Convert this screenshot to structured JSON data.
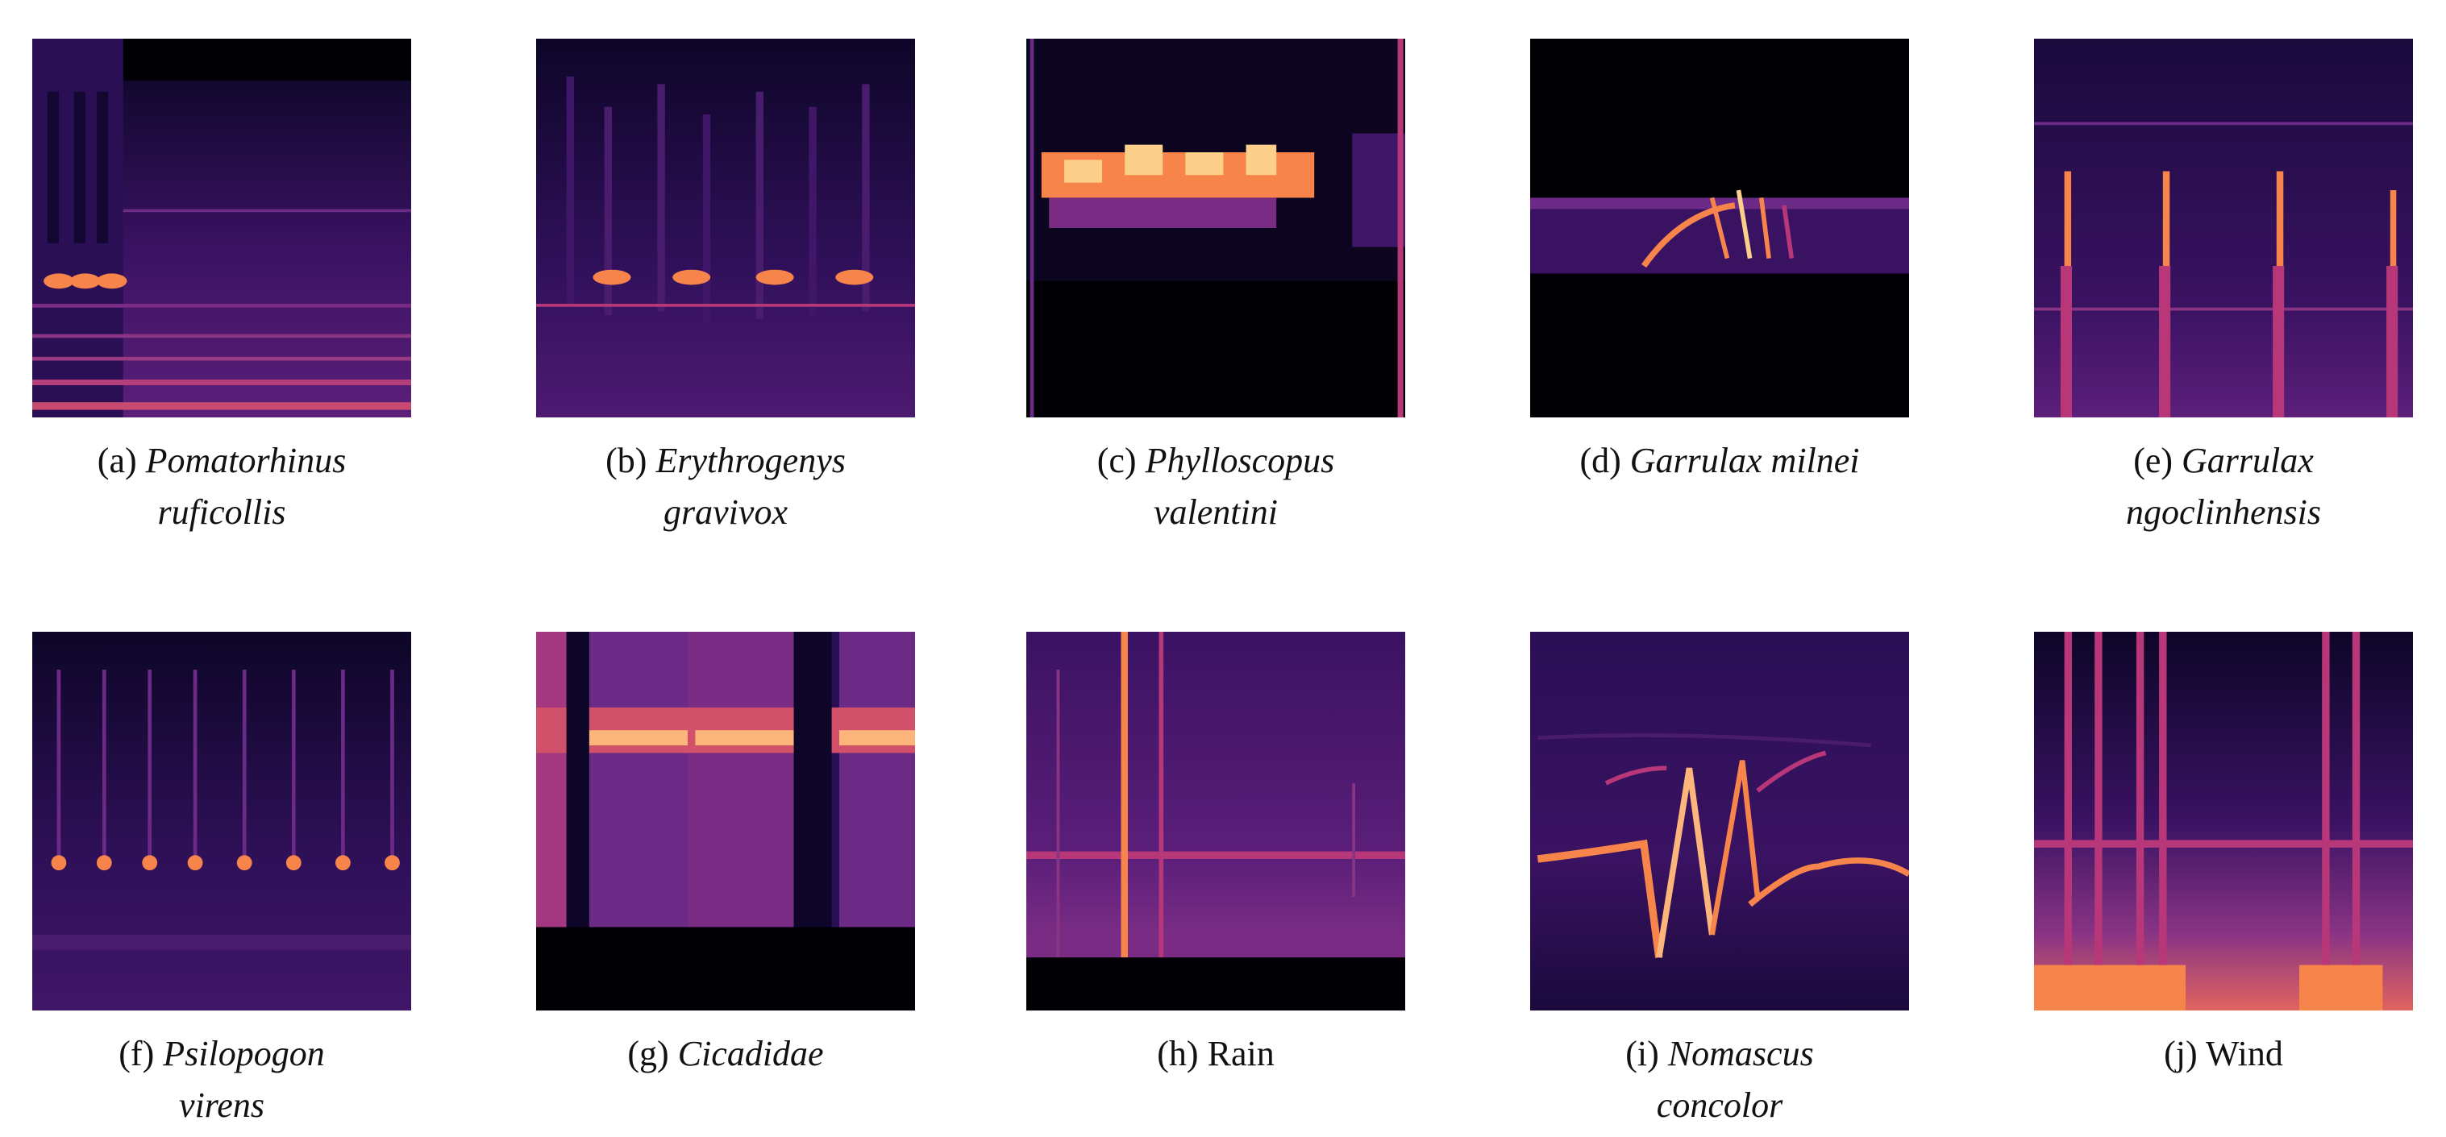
{
  "panels": [
    {
      "label": "(a)",
      "name_line1": "Pomatorhinus",
      "name_line2": "ruficollis",
      "italic": true
    },
    {
      "label": "(b)",
      "name_line1": "Erythrogenys",
      "name_line2": "gravivox",
      "italic": true
    },
    {
      "label": "(c)",
      "name_line1": "Phylloscopus",
      "name_line2": "valentini",
      "italic": true
    },
    {
      "label": "(d)",
      "name_line1": "Garrulax milnei",
      "name_line2": "",
      "italic": true
    },
    {
      "label": "(e)",
      "name_line1": "Garrulax",
      "name_line2": "ngoclinhensis",
      "italic": true
    },
    {
      "label": "(f)",
      "name_line1": "Psilopogon",
      "name_line2": "virens",
      "italic": true
    },
    {
      "label": "(g)",
      "name_line1": "Cicadidae",
      "name_line2": "",
      "italic": true
    },
    {
      "label": "(h)",
      "name_line1": "Rain",
      "name_line2": "",
      "italic": false
    },
    {
      "label": "(i)",
      "name_line1": "Nomascus",
      "name_line2": "concolor",
      "italic": true
    },
    {
      "label": "(j)",
      "name_line1": "Wind",
      "name_line2": "",
      "italic": false
    }
  ],
  "colors": {
    "background": "#000004",
    "dark": "#1b0c41",
    "mid": "#4a1c6e",
    "purple": "#6a2a86",
    "magenta": "#b73779",
    "orange": "#f7854b",
    "bright": "#fcffa4"
  }
}
